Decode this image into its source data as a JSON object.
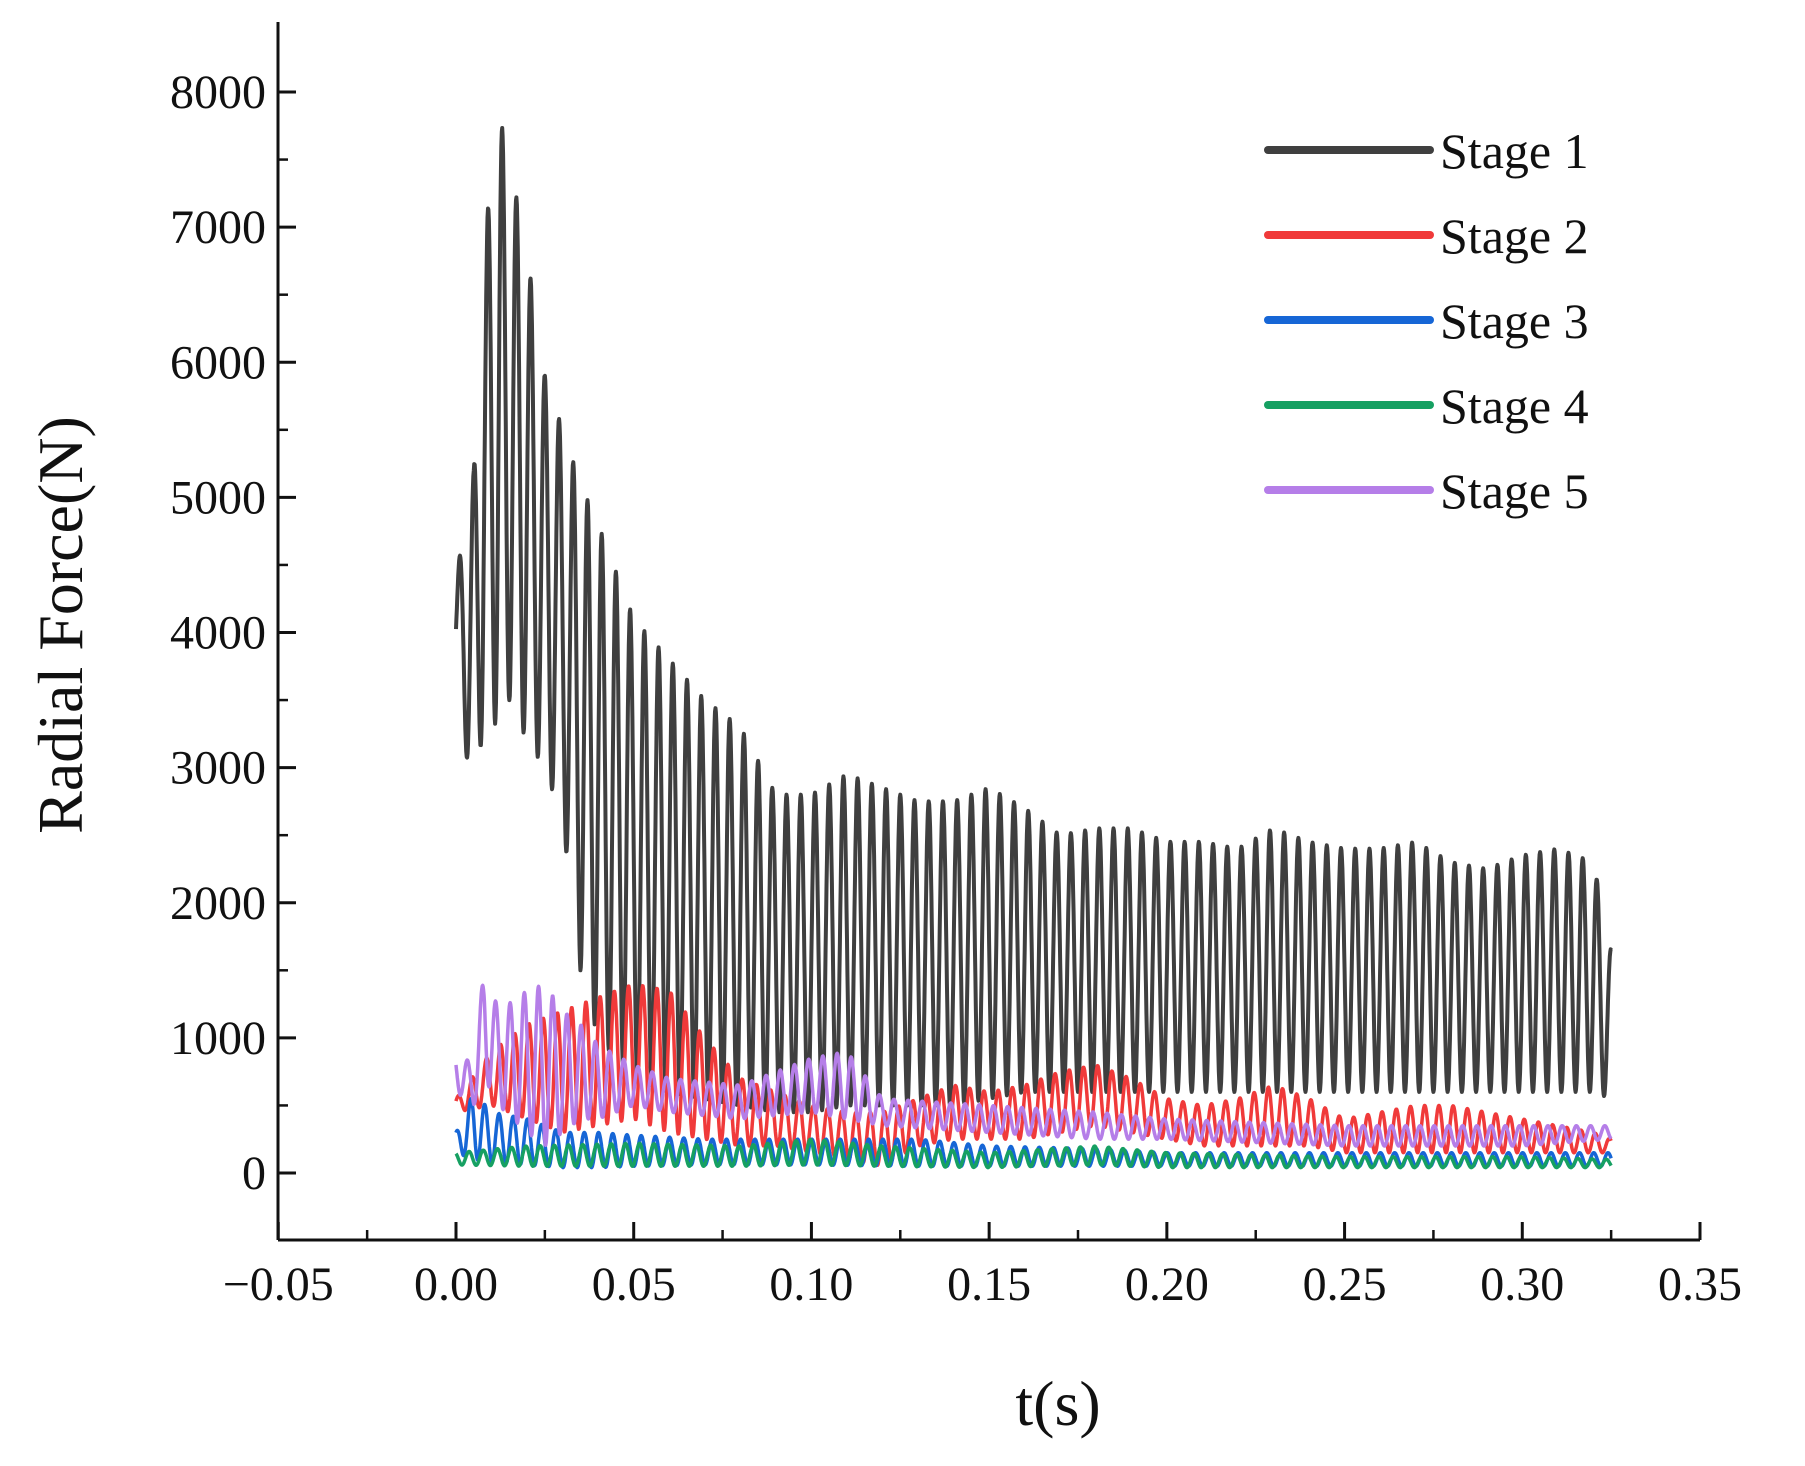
{
  "chart_data": {
    "type": "line",
    "title": "",
    "xlabel": "t(s)",
    "ylabel": "Radial Force(N)",
    "xlim": [
      -0.05,
      0.37
    ],
    "ylim": [
      -500,
      8500
    ],
    "x_ticks": [
      -0.05,
      0.0,
      0.05,
      0.1,
      0.15,
      0.2,
      0.25,
      0.3,
      0.35
    ],
    "x_tick_labels": [
      "−0.05",
      "0.00",
      "0.05",
      "0.10",
      "0.15",
      "0.20",
      "0.25",
      "0.30",
      "0.35"
    ],
    "y_ticks": [
      0,
      1000,
      2000,
      3000,
      4000,
      5000,
      6000,
      7000,
      8000
    ],
    "y_tick_labels": [
      "0",
      "1000",
      "2000",
      "3000",
      "4000",
      "5000",
      "6000",
      "7000",
      "8000"
    ],
    "grid": false,
    "legend_position": "top-right",
    "series": [
      {
        "name": "Stage 1",
        "color": "#3f3f3f",
        "envelope_t": [
          0.0,
          0.005,
          0.008,
          0.012,
          0.015,
          0.02,
          0.025,
          0.03,
          0.035,
          0.04,
          0.05,
          0.06,
          0.07,
          0.08,
          0.09,
          0.1,
          0.11,
          0.12,
          0.13,
          0.14,
          0.15,
          0.16,
          0.17,
          0.18,
          0.19,
          0.2,
          0.21,
          0.22,
          0.23,
          0.24,
          0.25,
          0.26,
          0.27,
          0.28,
          0.29,
          0.3,
          0.31,
          0.32,
          0.325
        ],
        "envelope_max": [
          4400,
          5200,
          6900,
          7850,
          7500,
          6800,
          5900,
          5500,
          5100,
          4800,
          4100,
          3800,
          3500,
          3300,
          2800,
          2800,
          2950,
          2850,
          2750,
          2750,
          2850,
          2700,
          2500,
          2550,
          2550,
          2450,
          2450,
          2400,
          2550,
          2450,
          2400,
          2400,
          2450,
          2300,
          2250,
          2350,
          2400,
          2300,
          1650
        ],
        "envelope_min": [
          3650,
          2700,
          3400,
          3300,
          3500,
          3200,
          3000,
          2600,
          1500,
          1000,
          700,
          600,
          550,
          500,
          450,
          450,
          500,
          500,
          500,
          500,
          550,
          600,
          600,
          600,
          600,
          600,
          600,
          600,
          600,
          600,
          600,
          600,
          600,
          600,
          600,
          600,
          600,
          600,
          550
        ],
        "period": 0.004
      },
      {
        "name": "Stage 2",
        "color": "#f03a3a",
        "envelope_t": [
          0.0,
          0.01,
          0.02,
          0.03,
          0.04,
          0.05,
          0.06,
          0.07,
          0.08,
          0.09,
          0.1,
          0.11,
          0.12,
          0.13,
          0.14,
          0.15,
          0.16,
          0.17,
          0.18,
          0.19,
          0.2,
          0.21,
          0.22,
          0.23,
          0.24,
          0.25,
          0.26,
          0.27,
          0.28,
          0.29,
          0.3,
          0.31,
          0.32,
          0.325
        ],
        "envelope_max": [
          550,
          900,
          1100,
          1200,
          1300,
          1400,
          1350,
          1000,
          700,
          600,
          500,
          450,
          450,
          550,
          650,
          600,
          650,
          750,
          800,
          700,
          550,
          500,
          550,
          650,
          550,
          400,
          450,
          500,
          500,
          450,
          400,
          350,
          300,
          250
        ],
        "envelope_min": [
          450,
          500,
          400,
          300,
          350,
          400,
          300,
          250,
          200,
          200,
          150,
          100,
          50,
          200,
          250,
          250,
          250,
          300,
          350,
          300,
          250,
          200,
          200,
          200,
          200,
          150,
          150,
          150,
          150,
          150,
          150,
          150,
          150,
          150
        ],
        "period": 0.004
      },
      {
        "name": "Stage 3",
        "color": "#1666d6",
        "envelope_t": [
          0.0,
          0.005,
          0.01,
          0.02,
          0.03,
          0.04,
          0.05,
          0.07,
          0.1,
          0.13,
          0.15,
          0.18,
          0.2,
          0.25,
          0.3,
          0.325
        ],
        "envelope_max": [
          300,
          600,
          450,
          400,
          300,
          300,
          280,
          250,
          250,
          250,
          200,
          180,
          150,
          150,
          150,
          150
        ],
        "envelope_min": [
          150,
          100,
          80,
          60,
          40,
          40,
          50,
          60,
          60,
          50,
          50,
          50,
          50,
          50,
          50,
          50
        ],
        "period": 0.004
      },
      {
        "name": "Stage 4",
        "color": "#16a062",
        "envelope_t": [
          0.0,
          0.02,
          0.05,
          0.08,
          0.1,
          0.12,
          0.15,
          0.18,
          0.2,
          0.25,
          0.3,
          0.325
        ],
        "envelope_max": [
          150,
          200,
          220,
          200,
          250,
          200,
          150,
          200,
          150,
          120,
          120,
          100
        ],
        "envelope_min": [
          60,
          50,
          50,
          50,
          60,
          50,
          40,
          60,
          40,
          40,
          40,
          40
        ],
        "period": 0.004
      },
      {
        "name": "Stage 5",
        "color": "#b57ee8",
        "envelope_t": [
          0.0,
          0.005,
          0.008,
          0.012,
          0.02,
          0.025,
          0.03,
          0.035,
          0.04,
          0.05,
          0.06,
          0.08,
          0.1,
          0.11,
          0.12,
          0.15,
          0.18,
          0.2,
          0.25,
          0.3,
          0.325
        ],
        "envelope_max": [
          900,
          800,
          1550,
          1200,
          1350,
          1400,
          1200,
          1100,
          950,
          800,
          700,
          650,
          850,
          900,
          550,
          500,
          450,
          400,
          350,
          350,
          350
        ],
        "envelope_min": [
          600,
          500,
          700,
          500,
          300,
          200,
          300,
          400,
          400,
          500,
          450,
          400,
          450,
          400,
          350,
          300,
          250,
          250,
          200,
          200,
          250
        ],
        "period": 0.004
      }
    ]
  }
}
